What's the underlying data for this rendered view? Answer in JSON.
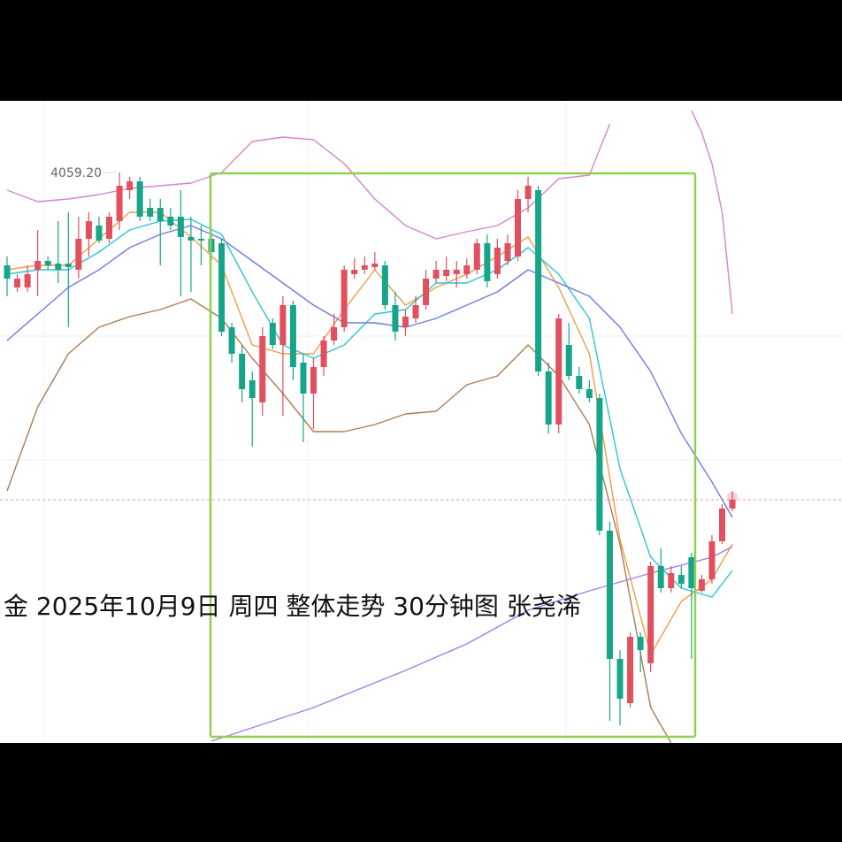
{
  "chart_data": {
    "type": "candlestick",
    "title": "金 2025年10月9日 周四 整体走势 30分钟图 张尧浠",
    "ylim": [
      3930.2,
      4075.4
    ],
    "up_color": "#e0505f",
    "down_color": "#17a589",
    "open": [
      4038.2,
      4033.2,
      4033.2,
      4037.2,
      4039.2,
      4038.6,
      4038.6,
      4037.2,
      4044.2,
      4047.2,
      4044.2,
      4048.2,
      4055.2,
      4057.2,
      4051.2,
      4051.2,
      4049.2,
      4049.2,
      4044.6,
      4044.2,
      4044.2,
      4043.2,
      4024.2,
      4018.2,
      4012.2,
      4007.2,
      4025.2,
      4020.2,
      4029.2,
      4016.2,
      4009.2,
      4015.2,
      4021.2,
      4024.2,
      4036.2,
      4037.2,
      4037.8,
      4038.2,
      4029.2,
      4024.2,
      4026.2,
      4029.2,
      4035.2,
      4035.8,
      4036.2,
      4036.2,
      4037.2,
      4043.2,
      4036.2,
      4039.2,
      4040.2,
      4053.2,
      4055.2,
      4014.2,
      4002.2,
      4020.2,
      4013.2,
      4010.2,
      4008.2,
      3978.2,
      3949.2,
      3939.2,
      3954.2,
      3948.2,
      3970.2,
      3965.2,
      3968.2,
      3972.2,
      3964.6,
      3967.2,
      3975.8,
      3983.2
    ],
    "high": [
      4040.2,
      4036.2,
      4038.2,
      4046.2,
      4040.2,
      4048.2,
      4050.2,
      4049.2,
      4050.2,
      4049.2,
      4050.2,
      4059.2,
      4058.2,
      4058.2,
      4053.2,
      4053.2,
      4051.2,
      4055.2,
      4049.2,
      4047.2,
      4046.2,
      4044.2,
      4025.2,
      4020.2,
      4014.2,
      4024.2,
      4026.2,
      4031.2,
      4030.2,
      4018.2,
      4017.2,
      4022.2,
      4027.2,
      4038.2,
      4039.8,
      4040.2,
      4041.2,
      4039.2,
      4032.2,
      4028.2,
      4031.2,
      4037.2,
      4039.2,
      4040.2,
      4039.2,
      4039.8,
      4044.2,
      4045.2,
      4044.2,
      4045.2,
      4055.2,
      4058.2,
      4056.2,
      4016.2,
      4027.2,
      4025.2,
      4015.2,
      4012.2,
      4009.2,
      3980.2,
      3951.2,
      3955.2,
      3955.2,
      3971.2,
      3974.2,
      3970.2,
      3970.2,
      3973.2,
      3968.2,
      3977.2,
      3984.2,
      3987.2
    ],
    "low": [
      4031.2,
      4032.2,
      4032.2,
      4031.2,
      4037.2,
      4034.2,
      4024.2,
      4035.2,
      4040.2,
      4043.2,
      4043.2,
      4046.2,
      4053.2,
      4048.2,
      4048.2,
      4038.2,
      4046.2,
      4031.2,
      4032.2,
      4038.2,
      4039.2,
      4022.2,
      4016.2,
      4007.2,
      3997.2,
      4004.2,
      4019.2,
      4004.2,
      4012.2,
      3998.2,
      4001.2,
      4013.2,
      4020.2,
      4023.2,
      4035.2,
      4036.2,
      4037.2,
      4028.2,
      4021.2,
      4022.2,
      4025.2,
      4028.2,
      4034.2,
      4034.6,
      4033.2,
      4035.2,
      4036.2,
      4033.2,
      4035.2,
      4038.2,
      4039.2,
      4050.2,
      4013.2,
      4000.2,
      4000.2,
      4012.2,
      4009.2,
      4007.2,
      3977.2,
      3935.2,
      3934.2,
      3938.2,
      3946.2,
      3946.2,
      3964.2,
      3964.2,
      3965.2,
      3949.2,
      3964.2,
      3966.2,
      3975.2,
      3982.6
    ],
    "close": [
      4035.2,
      4035.2,
      4036.2,
      4039.2,
      4038.2,
      4037.2,
      4037.8,
      4044.2,
      4048.2,
      4043.8,
      4049.2,
      4056.2,
      4057.2,
      4049.2,
      4049.2,
      4048.2,
      4047.2,
      4044.6,
      4043.8,
      4043.8,
      4041.2,
      4023.2,
      4018.2,
      4010.2,
      4008.2,
      4022.2,
      4020.2,
      4029.2,
      4015.2,
      4009.2,
      4015.2,
      4021.2,
      4024.2,
      4037.2,
      4037.2,
      4038.2,
      4038.6,
      4029.2,
      4023.2,
      4026.6,
      4029.2,
      4035.2,
      4037.2,
      4037.2,
      4037.2,
      4038.2,
      4043.2,
      4034.6,
      4042.2,
      4043.2,
      4053.2,
      4056.2,
      4014.2,
      4002.2,
      4026.2,
      4013.2,
      4010.2,
      4008.2,
      3978.2,
      3949.2,
      3940.2,
      3954.2,
      3951.2,
      3970.2,
      3965.2,
      3968.6,
      3966.2,
      3965.2,
      3967.2,
      3975.8,
      3983.2,
      3985.2
    ],
    "high_label": {
      "value": 4059.2,
      "label": "4059.20"
    },
    "series": [
      {
        "color": "#f39c45",
        "x": [
          0,
          3,
          6,
          9,
          12,
          15,
          18,
          21,
          24,
          27,
          30,
          33,
          36,
          39,
          42,
          45,
          48,
          51,
          54,
          57,
          60,
          63,
          66,
          69,
          71
        ],
        "values": [
          4037.2,
          4038.2,
          4038.2,
          4044.2,
          4050.2,
          4050.2,
          4044.6,
          4038.2,
          4020.2,
          4018.2,
          4018.2,
          4028.2,
          4037.2,
          4029.2,
          4033.2,
          4036.2,
          4040.2,
          4044.6,
          4033.2,
          4018.2,
          3976.2,
          3950.2,
          3962.2,
          3967.2,
          3975.2
        ]
      },
      {
        "color": "#2ec4d6",
        "x": [
          0,
          3,
          6,
          9,
          12,
          15,
          18,
          21,
          24,
          27,
          30,
          33,
          36,
          39,
          42,
          45,
          48,
          51,
          54,
          57,
          60,
          63,
          66,
          69,
          71
        ],
        "values": [
          4036.2,
          4037.2,
          4037.2,
          4041.2,
          4046.2,
          4048.2,
          4048.6,
          4045.2,
          4032.2,
          4020.2,
          4017.2,
          4020.2,
          4027.2,
          4028.2,
          4034.2,
          4034.2,
          4037.2,
          4042.2,
          4036.2,
          4026.2,
          3992.2,
          3972.2,
          3965.2,
          3963.2,
          3969.2
        ]
      },
      {
        "color": "#6f7be3",
        "x": [
          0,
          3,
          6,
          9,
          12,
          15,
          18,
          21,
          24,
          27,
          30,
          33,
          36,
          39,
          42,
          45,
          48,
          51,
          54,
          57,
          60,
          63,
          66,
          69,
          71
        ],
        "values": [
          4021.2,
          4027.2,
          4033.2,
          4037.2,
          4042.2,
          4045.2,
          4047.2,
          4044.2,
          4039.2,
          4034.2,
          4029.2,
          4025.2,
          4025.2,
          4024.2,
          4026.2,
          4029.2,
          4032.2,
          4037.2,
          4034.2,
          4031.2,
          4024.2,
          4014.2,
          4000.2,
          3989.2,
          3981.2
        ]
      },
      {
        "color": "#b07a52",
        "x": [
          0,
          3,
          6,
          9,
          12,
          15,
          18,
          21,
          24,
          27,
          30,
          33,
          36,
          39,
          42,
          45,
          48,
          51,
          54,
          57,
          60,
          63,
          65
        ],
        "values": [
          3987.2,
          4006.2,
          4018.2,
          4024.2,
          4026.6,
          4028.2,
          4030.6,
          4026.2,
          4017.2,
          4009.2,
          4000.6,
          4000.6,
          4002.2,
          4004.6,
          4005.2,
          4011.2,
          4013.2,
          4020.2,
          4013.2,
          4002.2,
          3975.2,
          3938.2,
          3930.2
        ]
      },
      {
        "color": "#da80d4",
        "x": [
          0,
          3,
          6,
          9,
          12,
          15,
          18,
          21,
          24,
          27,
          30,
          33,
          36,
          39,
          42,
          45,
          48,
          51,
          54,
          57,
          59,
          63,
          67,
          68,
          69,
          70,
          71
        ],
        "values": [
          4055.2,
          4052.6,
          4053.2,
          4054.2,
          4055.6,
          4056.2,
          4056.8,
          4059.2,
          4066.2,
          4067.2,
          4066.6,
          4061.2,
          4053.2,
          4047.2,
          4044.2,
          4045.8,
          4047.2,
          4051.2,
          4057.8,
          4058.6,
          4070.2,
          null,
          4073.2,
          4068.2,
          4061.2,
          4050.2,
          4027.2
        ]
      },
      {
        "color": "#a77de9",
        "x": [
          20,
          30,
          39,
          45,
          51,
          57,
          63,
          69,
          71
        ],
        "values": [
          3930.6,
          3938.2,
          3946.6,
          3952.6,
          3960.2,
          3964.6,
          3968.6,
          3972.2,
          3974.6
        ]
      }
    ]
  }
}
